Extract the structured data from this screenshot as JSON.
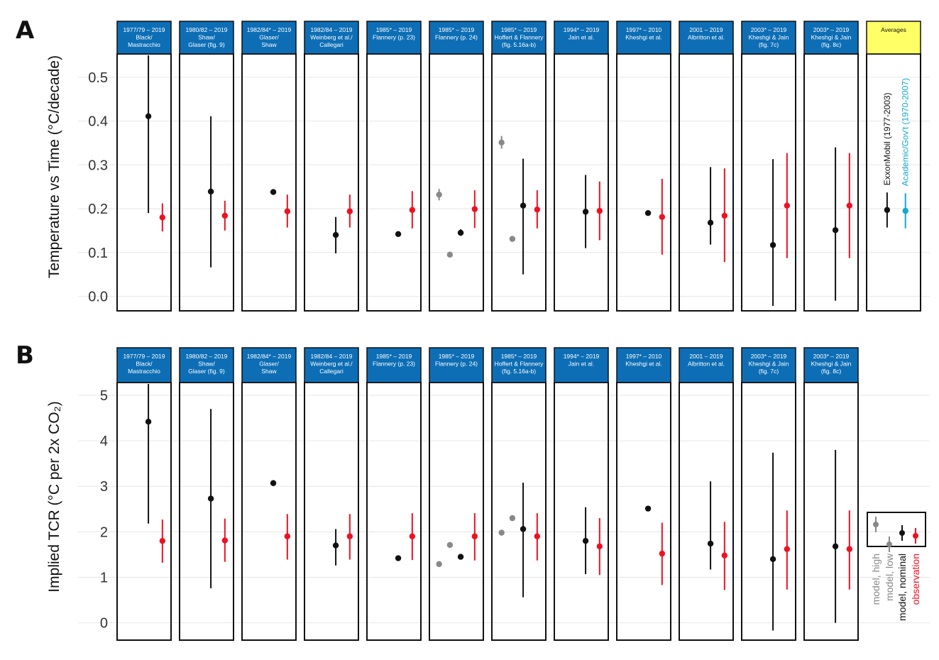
{
  "colors": {
    "header_bg": "#0d6eb5",
    "averages_header_bg": "#ffff66",
    "model_nominal": "#111111",
    "observation": "#ee1122",
    "model_alt": "#888888",
    "academic": "#11a8cc",
    "grid": "#e6e6e6"
  },
  "panels": [
    {
      "date": "1977/79 – 2019",
      "source_lines": [
        "Black/",
        "Mastracchio"
      ]
    },
    {
      "date": "1980/82 – 2019",
      "source_lines": [
        "Shaw/",
        "Glaser (fig. 9)"
      ]
    },
    {
      "date": "1982/84* – 2019",
      "source_lines": [
        "Glaser/",
        "Shaw"
      ]
    },
    {
      "date": "1982/84 – 2019",
      "source_lines": [
        "Weinberg et al./",
        "Callegari"
      ]
    },
    {
      "date": "1985* – 2019",
      "source_lines": [
        "Flannery (p. 23)"
      ]
    },
    {
      "date": "1985* – 2019",
      "source_lines": [
        "Flannery (p. 24)"
      ]
    },
    {
      "date": "1985* – 2019",
      "source_lines": [
        "Hoffert & Flannery",
        "(fig. 5.16a-b)"
      ]
    },
    {
      "date": "1994* – 2019",
      "source_lines": [
        "Jain et al."
      ]
    },
    {
      "date": "1997* – 2010",
      "source_lines": [
        "Kheshgi et al."
      ]
    },
    {
      "date": "2001 – 2019",
      "source_lines": [
        "Albritton et al."
      ]
    },
    {
      "date": "2003* – 2019",
      "source_lines": [
        "Kheshgi & Jain",
        "(fig. 7c)"
      ]
    },
    {
      "date": "2003* – 2019",
      "source_lines": [
        "Kheshgi & Jain",
        "(fig. 8c)"
      ]
    }
  ],
  "averages": {
    "header": "Averages",
    "exxon_label": "ExxonMobil (1977-2003)",
    "academic_label": "Academic/Gov't (1970-2007)",
    "exxon": {
      "y": 0.197,
      "lo": 0.157,
      "hi": 0.237
    },
    "academic": {
      "y": 0.195,
      "lo": 0.155,
      "hi": 0.235
    }
  },
  "legend": {
    "model_high": "model, high",
    "model_low": "model, low",
    "model_nominal": "model, nominal",
    "observation": "observation"
  },
  "chart_data": [
    {
      "panel": "A",
      "type": "scatter",
      "ylabel": "Temperature vs Time (°C/decade)",
      "ylim": [
        -0.03,
        0.55
      ],
      "yticks": [
        "0.0",
        "0.1",
        "0.2",
        "0.3",
        "0.4",
        "0.5"
      ],
      "ytick_values": [
        0.0,
        0.1,
        0.2,
        0.3,
        0.4,
        0.5
      ],
      "grid": true,
      "subplots": [
        {
          "model": [
            {
              "y": 0.411,
              "lo": 0.19,
              "hi": 0.55
            }
          ],
          "obs": {
            "y": 0.18,
            "lo": 0.148,
            "hi": 0.212
          }
        },
        {
          "model": [
            {
              "y": 0.239,
              "lo": 0.066,
              "hi": 0.411
            }
          ],
          "obs": {
            "y": 0.184,
            "lo": 0.15,
            "hi": 0.218
          }
        },
        {
          "model": [
            {
              "y": 0.238,
              "lo": 0.232,
              "hi": 0.244
            }
          ],
          "obs": {
            "y": 0.194,
            "lo": 0.157,
            "hi": 0.232
          }
        },
        {
          "model": [
            {
              "y": 0.14,
              "lo": 0.098,
              "hi": 0.181
            }
          ],
          "obs": {
            "y": 0.194,
            "lo": 0.157,
            "hi": 0.232
          }
        },
        {
          "model": [
            {
              "y": 0.142
            }
          ],
          "obs": {
            "y": 0.197,
            "lo": 0.155,
            "hi": 0.24
          }
        },
        {
          "model": [
            {
              "y": 0.232,
              "lo": 0.219,
              "hi": 0.245,
              "kind": "high"
            },
            {
              "y": 0.095,
              "kind": "low"
            },
            {
              "y": 0.145,
              "lo": 0.138,
              "hi": 0.153
            }
          ],
          "obs": {
            "y": 0.199,
            "lo": 0.156,
            "hi": 0.242
          }
        },
        {
          "model": [
            {
              "y": 0.351,
              "lo": 0.337,
              "hi": 0.366,
              "kind": "high"
            },
            {
              "y": 0.131,
              "kind": "low"
            },
            {
              "y": 0.207,
              "lo": 0.05,
              "hi": 0.314
            }
          ],
          "obs": {
            "y": 0.198,
            "lo": 0.155,
            "hi": 0.242
          }
        },
        {
          "model": [
            {
              "y": 0.193,
              "lo": 0.11,
              "hi": 0.277
            }
          ],
          "obs": {
            "y": 0.195,
            "lo": 0.128,
            "hi": 0.262
          }
        },
        {
          "model": [
            {
              "y": 0.19
            }
          ],
          "obs": {
            "y": 0.181,
            "lo": 0.095,
            "hi": 0.268
          }
        },
        {
          "model": [
            {
              "y": 0.168,
              "lo": 0.118,
              "hi": 0.295
            }
          ],
          "obs": {
            "y": 0.184,
            "lo": 0.078,
            "hi": 0.292
          }
        },
        {
          "model": [
            {
              "y": 0.117,
              "lo": -0.022,
              "hi": 0.313
            }
          ],
          "obs": {
            "y": 0.207,
            "lo": 0.087,
            "hi": 0.327
          }
        },
        {
          "model": [
            {
              "y": 0.151,
              "lo": -0.01,
              "hi": 0.34
            }
          ],
          "obs": {
            "y": 0.207,
            "lo": 0.087,
            "hi": 0.327
          }
        }
      ]
    },
    {
      "panel": "B",
      "type": "scatter",
      "ylabel": "Implied TCR (°C per 2x CO₂)",
      "ylim": [
        -0.35,
        5.25
      ],
      "yticks": [
        "0",
        "1",
        "2",
        "3",
        "4",
        "5"
      ],
      "ytick_values": [
        0,
        1,
        2,
        3,
        4,
        5
      ],
      "grid": true,
      "subplots": [
        {
          "model": [
            {
              "y": 4.42,
              "lo": 2.18,
              "hi": 5.25
            }
          ],
          "obs": {
            "y": 1.8,
            "lo": 1.32,
            "hi": 2.27
          }
        },
        {
          "model": [
            {
              "y": 2.73,
              "lo": 0.76,
              "hi": 4.7
            }
          ],
          "obs": {
            "y": 1.81,
            "lo": 1.34,
            "hi": 2.29
          }
        },
        {
          "model": [
            {
              "y": 3.07
            }
          ],
          "obs": {
            "y": 1.9,
            "lo": 1.39,
            "hi": 2.39
          }
        },
        {
          "model": [
            {
              "y": 1.7,
              "lo": 1.26,
              "hi": 2.06
            }
          ],
          "obs": {
            "y": 1.9,
            "lo": 1.39,
            "hi": 2.39
          }
        },
        {
          "model": [
            {
              "y": 1.42
            }
          ],
          "obs": {
            "y": 1.9,
            "lo": 1.38,
            "hi": 2.41
          }
        },
        {
          "model": [
            {
              "y": 1.29,
              "kind": "high"
            },
            {
              "y": 1.71,
              "kind": "low"
            },
            {
              "y": 1.45
            }
          ],
          "obs": {
            "y": 1.9,
            "lo": 1.37,
            "hi": 2.41
          }
        },
        {
          "model": [
            {
              "y": 1.98,
              "kind": "high"
            },
            {
              "y": 2.3,
              "kind": "low"
            },
            {
              "y": 2.06,
              "lo": 0.56,
              "hi": 3.08
            }
          ],
          "obs": {
            "y": 1.9,
            "lo": 1.37,
            "hi": 2.41
          }
        },
        {
          "model": [
            {
              "y": 1.8,
              "lo": 1.07,
              "hi": 2.54
            }
          ],
          "obs": {
            "y": 1.68,
            "lo": 1.05,
            "hi": 2.3
          }
        },
        {
          "model": [
            {
              "y": 2.51
            }
          ],
          "obs": {
            "y": 1.52,
            "lo": 0.83,
            "hi": 2.2
          }
        },
        {
          "model": [
            {
              "y": 1.74,
              "lo": 1.17,
              "hi": 3.11
            }
          ],
          "obs": {
            "y": 1.48,
            "lo": 0.72,
            "hi": 2.22
          }
        },
        {
          "model": [
            {
              "y": 1.4,
              "lo": -0.17,
              "hi": 3.74
            }
          ],
          "obs": {
            "y": 1.62,
            "lo": 0.73,
            "hi": 2.47
          }
        },
        {
          "model": [
            {
              "y": 1.68,
              "lo": 0.0,
              "hi": 3.8
            }
          ],
          "obs": {
            "y": 1.62,
            "lo": 0.73,
            "hi": 2.47
          }
        }
      ]
    }
  ]
}
